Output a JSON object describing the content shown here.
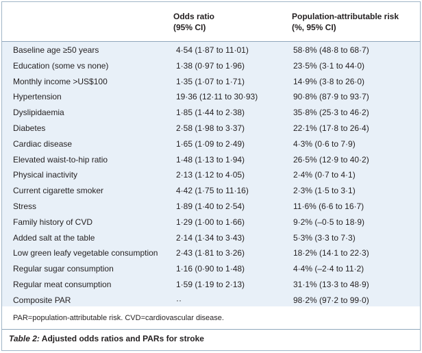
{
  "header": {
    "col2_line1": "Odds ratio",
    "col2_line2": "(95% CI)",
    "col3_line1": "Population-attributable risk",
    "col3_line2": "(%, 95% CI)"
  },
  "rows": [
    {
      "factor": "Baseline age ≥50 years",
      "or": "4·54 (1·87 to 11·01)",
      "par": "58·8% (48·8 to 68·7)"
    },
    {
      "factor": "Education (some vs none)",
      "or": "1·38 (0·97 to 1·96)",
      "par": "23·5% (3·1 to 44·0)"
    },
    {
      "factor": "Monthly income >US$100",
      "or": "1·35 (1·07 to 1·71)",
      "par": "14·9% (3·8 to 26·0)"
    },
    {
      "factor": "Hypertension",
      "or": "19·36 (12·11 to 30·93)",
      "par": "90·8% (87·9 to 93·7)"
    },
    {
      "factor": "Dyslipidaemia",
      "or": "1·85 (1·44 to 2·38)",
      "par": "35·8% (25·3 to 46·2)"
    },
    {
      "factor": "Diabetes",
      "or": "2·58 (1·98 to 3·37)",
      "par": "22·1% (17·8 to 26·4)"
    },
    {
      "factor": "Cardiac disease",
      "or": "1·65 (1·09 to 2·49)",
      "par": "4·3% (0·6 to 7·9)"
    },
    {
      "factor": "Elevated waist-to-hip ratio",
      "or": "1·48 (1·13 to 1·94)",
      "par": "26·5% (12·9 to 40·2)"
    },
    {
      "factor": "Physical inactivity",
      "or": "2·13 (1·12 to 4·05)",
      "par": "2·4% (0·7 to 4·1)"
    },
    {
      "factor": "Current cigarette smoker",
      "or": "4·42 (1·75 to 11·16)",
      "par": "2·3% (1·5 to 3·1)"
    },
    {
      "factor": "Stress",
      "or": "1·89 (1·40 to 2·54)",
      "par": "11·6% (6·6 to 16·7)"
    },
    {
      "factor": "Family history of CVD",
      "or": "1·29 (1·00 to 1·66)",
      "par": "9·2% (–0·5 to 18·9)"
    },
    {
      "factor": "Added salt at the table",
      "or": "2·14 (1·34 to 3·43)",
      "par": "5·3% (3·3 to 7·3)"
    },
    {
      "factor": "Low green leafy vegetable consumption",
      "or": "2·43 (1·81 to 3·26)",
      "par": "18·2% (14·1 to 22·3)"
    },
    {
      "factor": "Regular sugar consumption",
      "or": "1·16 (0·90 to 1·48)",
      "par": "4·4% (–2·4 to 11·2)"
    },
    {
      "factor": "Regular meat consumption",
      "or": "1·59 (1·19 to 2·13)",
      "par": "31·1% (13·3 to 48·9)"
    },
    {
      "factor": "Composite PAR",
      "or": "··",
      "par": "98·2% (97·2 to 99·0)"
    }
  ],
  "footnote": "PAR=population-attributable risk. CVD=cardiovascular disease.",
  "caption": {
    "label": "Table 2:",
    "title": " Adjusted odds ratios and PARs for stroke"
  }
}
